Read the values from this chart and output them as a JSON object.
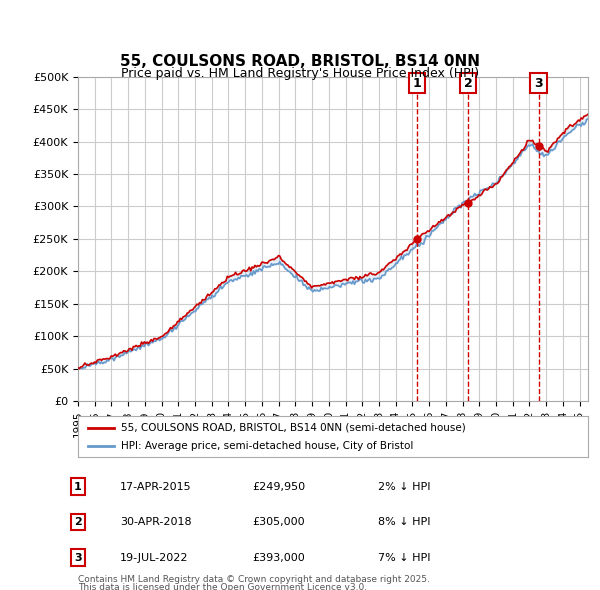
{
  "title": "55, COULSONS ROAD, BRISTOL, BS14 0NN",
  "subtitle": "Price paid vs. HM Land Registry's House Price Index (HPI)",
  "ylabel_ticks": [
    "£0",
    "£50K",
    "£100K",
    "£150K",
    "£200K",
    "£250K",
    "£300K",
    "£350K",
    "£400K",
    "£450K",
    "£500K"
  ],
  "ytick_values": [
    0,
    50000,
    100000,
    150000,
    200000,
    250000,
    300000,
    350000,
    400000,
    450000,
    500000
  ],
  "ylim": [
    0,
    500000
  ],
  "xlim_start": 1995.0,
  "xlim_end": 2025.5,
  "hpi_color": "#6699cc",
  "price_color": "#cc0000",
  "transaction_color": "#cc0000",
  "vline_color": "#cc0000",
  "background_color": "#ffffff",
  "plot_bg_color": "#ffffff",
  "grid_color": "#cccccc",
  "transactions": [
    {
      "id": 1,
      "date_label": "17-APR-2015",
      "date_x": 2015.29,
      "price": 249950,
      "pct": "2%",
      "direction": "↓"
    },
    {
      "id": 2,
      "date_label": "30-APR-2018",
      "date_x": 2018.33,
      "price": 305000,
      "pct": "8%",
      "direction": "↓"
    },
    {
      "id": 3,
      "date_label": "19-JUL-2022",
      "date_x": 2022.54,
      "price": 393000,
      "pct": "7%",
      "direction": "↓"
    }
  ],
  "legend_line1": "55, COULSONS ROAD, BRISTOL, BS14 0NN (semi-detached house)",
  "legend_line2": "HPI: Average price, semi-detached house, City of Bristol",
  "footnote1": "Contains HM Land Registry data © Crown copyright and database right 2025.",
  "footnote2": "This data is licensed under the Open Government Licence v3.0.",
  "xticks": [
    1995,
    1996,
    1997,
    1998,
    1999,
    2000,
    2001,
    2002,
    2003,
    2004,
    2005,
    2006,
    2007,
    2008,
    2009,
    2010,
    2011,
    2012,
    2013,
    2014,
    2015,
    2016,
    2017,
    2018,
    2019,
    2020,
    2021,
    2022,
    2023,
    2024,
    2025
  ]
}
